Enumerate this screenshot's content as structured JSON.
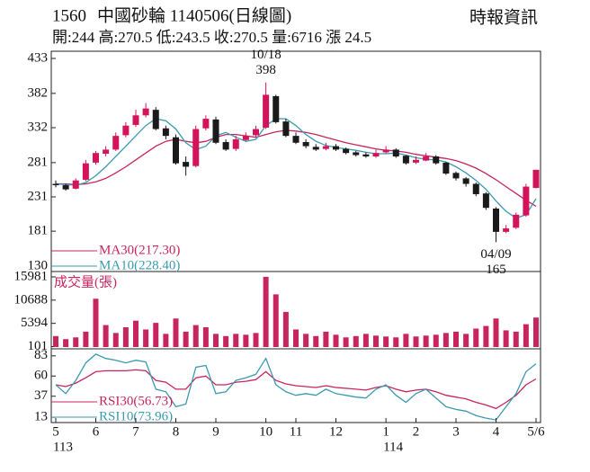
{
  "header": {
    "code": "1560",
    "name": "中國砂輪 1140506(日線圖)",
    "source": "時報資訊",
    "quote": "開:244 高:270.5 低:243.5 收:270.5 量:6716 漲 24.5"
  },
  "chart_data": [
    {
      "type": "candlestick",
      "xlim": [
        0,
        48
      ],
      "ylim": [
        130,
        433
      ],
      "yticks": [
        433,
        382,
        332,
        281,
        231,
        181,
        130
      ],
      "up_color": "#d4145a",
      "down_color": "#1a1a1a",
      "open": [
        250,
        248,
        243,
        256,
        281,
        294,
        300,
        321,
        336,
        350,
        358,
        331,
        318,
        282,
        276,
        331,
        344,
        311,
        301,
        314,
        321,
        332,
        378,
        341,
        320,
        311,
        304,
        301,
        305,
        301,
        296,
        293,
        290,
        296,
        300,
        291,
        281,
        284,
        290,
        281,
        266,
        258,
        250,
        236,
        214,
        180,
        186,
        204,
        244
      ],
      "high": [
        255,
        250,
        258,
        285,
        298,
        305,
        325,
        340,
        358,
        368,
        362,
        335,
        322,
        290,
        335,
        350,
        348,
        315,
        320,
        325,
        335,
        398,
        380,
        345,
        325,
        315,
        308,
        310,
        308,
        303,
        298,
        296,
        300,
        305,
        302,
        292,
        290,
        295,
        292,
        282,
        268,
        260,
        252,
        238,
        216,
        190,
        208,
        250,
        270.5
      ],
      "low": [
        245,
        240,
        242,
        254,
        278,
        290,
        298,
        318,
        333,
        347,
        328,
        315,
        278,
        262,
        274,
        328,
        308,
        298,
        298,
        312,
        318,
        330,
        338,
        318,
        308,
        302,
        298,
        299,
        298,
        293,
        290,
        288,
        288,
        294,
        288,
        278,
        279,
        283,
        278,
        263,
        255,
        246,
        232,
        212,
        165,
        178,
        184,
        202,
        243.5
      ],
      "close": [
        248,
        242,
        255,
        280,
        295,
        300,
        320,
        335,
        350,
        360,
        330,
        320,
        280,
        275,
        330,
        345,
        310,
        300,
        315,
        320,
        330,
        380,
        340,
        320,
        310,
        305,
        300,
        305,
        300,
        295,
        292,
        290,
        295,
        300,
        290,
        280,
        285,
        290,
        280,
        265,
        258,
        250,
        235,
        215,
        180,
        185,
        205,
        246,
        270.5
      ],
      "series": [
        {
          "name": "MA30(217.30)",
          "color": "#c8245e",
          "values": [
            250,
            250,
            249,
            250,
            253,
            258,
            266,
            275,
            285,
            295,
            305,
            312,
            315,
            312,
            310,
            312,
            318,
            322,
            322,
            320,
            318,
            322,
            326,
            328,
            327,
            325,
            322,
            318,
            314,
            310,
            307,
            304,
            301,
            299,
            298,
            296,
            293,
            291,
            289,
            287,
            284,
            279,
            273,
            265,
            256,
            246,
            236,
            226,
            217.3
          ]
        },
        {
          "name": "MA10(228.40)",
          "color": "#3a9ab0",
          "values": [
            250,
            249,
            248,
            252,
            262,
            275,
            290,
            305,
            320,
            335,
            345,
            342,
            330,
            310,
            300,
            305,
            320,
            325,
            318,
            312,
            315,
            335,
            345,
            345,
            335,
            322,
            312,
            306,
            303,
            301,
            299,
            296,
            294,
            294,
            295,
            292,
            288,
            286,
            285,
            282,
            275,
            266,
            255,
            242,
            225,
            210,
            200,
            205,
            228.4
          ]
        }
      ],
      "annotations": [
        {
          "label": "10/18",
          "value": 398
        },
        {
          "label": "04/09",
          "value": 165
        }
      ]
    },
    {
      "type": "bar",
      "title": "成交量(張)",
      "xlim": [
        0,
        48
      ],
      "ylim": [
        0,
        17000
      ],
      "yticks": [
        15981,
        10688,
        5394,
        101
      ],
      "color": "#c8245e",
      "values": [
        2500,
        1800,
        2200,
        3500,
        11000,
        5000,
        3200,
        4500,
        6000,
        4000,
        5500,
        3000,
        6500,
        3500,
        5000,
        4500,
        3000,
        2500,
        3000,
        2800,
        3200,
        16000,
        12000,
        8000,
        4000,
        3000,
        2500,
        3500,
        2800,
        2200,
        2500,
        3000,
        2600,
        2400,
        2200,
        3000,
        2400,
        2600,
        2800,
        3200,
        3500,
        3000,
        4200,
        4800,
        6500,
        3800,
        3500,
        5200,
        6716
      ]
    },
    {
      "type": "line",
      "xlim": [
        0,
        48
      ],
      "ylim": [
        7,
        91
      ],
      "yticks": [
        83,
        60,
        37,
        13
      ],
      "xticks": [
        {
          "value": 0,
          "label": "5"
        },
        {
          "value": 4,
          "label": "6"
        },
        {
          "value": 8,
          "label": "7"
        },
        {
          "value": 12,
          "label": "8"
        },
        {
          "value": 16,
          "label": "9"
        },
        {
          "value": 21,
          "label": "10"
        },
        {
          "value": 24,
          "label": "11"
        },
        {
          "value": 28,
          "label": "12"
        },
        {
          "value": 33,
          "label": "1"
        },
        {
          "value": 36,
          "label": "2"
        },
        {
          "value": 40,
          "label": "3"
        },
        {
          "value": 44,
          "label": "4"
        },
        {
          "value": 48,
          "label": "5/6"
        }
      ],
      "year_ticks": [
        {
          "value": 0,
          "label": "113"
        },
        {
          "value": 33,
          "label": "114"
        }
      ],
      "series": [
        {
          "name": "RSI30(56.73)",
          "color": "#c8245e",
          "values": [
            50,
            48,
            52,
            58,
            65,
            66,
            66,
            66,
            67,
            66,
            55,
            53,
            45,
            45,
            58,
            60,
            50,
            50,
            53,
            54,
            56,
            65,
            55,
            51,
            49,
            48,
            47,
            49,
            47,
            46,
            45,
            44,
            47,
            49,
            45,
            42,
            44,
            45,
            42,
            38,
            36,
            34,
            30,
            27,
            23,
            30,
            38,
            50,
            56.73
          ]
        },
        {
          "name": "RSI10(73.96)",
          "color": "#3a9ab0",
          "values": [
            50,
            40,
            55,
            75,
            85,
            80,
            78,
            75,
            78,
            76,
            45,
            42,
            25,
            28,
            70,
            72,
            40,
            42,
            55,
            58,
            62,
            80,
            50,
            42,
            38,
            40,
            38,
            45,
            40,
            38,
            36,
            35,
            45,
            50,
            38,
            30,
            40,
            45,
            35,
            25,
            22,
            20,
            15,
            12,
            10,
            25,
            40,
            65,
            73.96
          ]
        }
      ]
    }
  ]
}
